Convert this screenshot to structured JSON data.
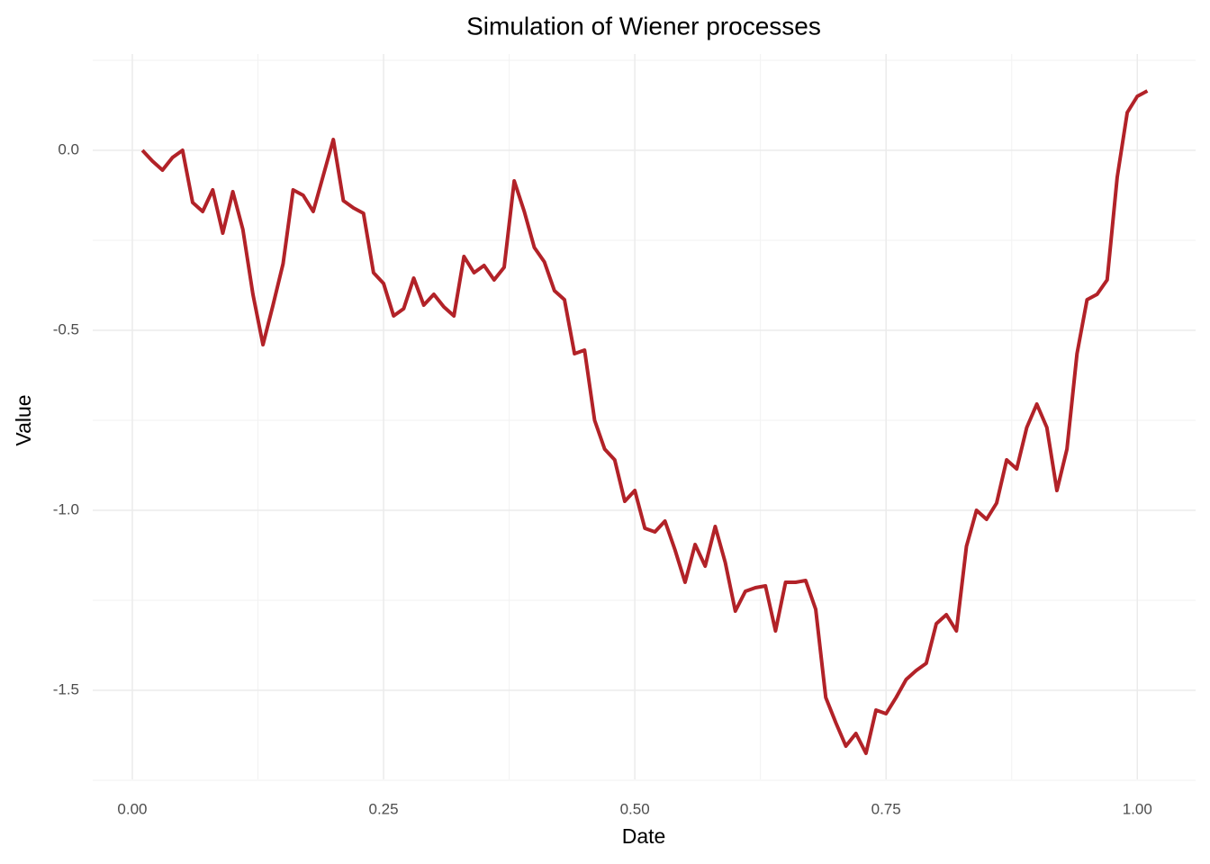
{
  "chart_data": {
    "type": "line",
    "title": "Simulation of Wiener processes",
    "x_label": "Date",
    "y_label": "Value",
    "x": [
      0.01,
      0.02,
      0.03,
      0.04,
      0.05,
      0.06,
      0.07,
      0.08,
      0.09,
      0.1,
      0.11,
      0.12,
      0.13,
      0.14,
      0.15,
      0.16,
      0.17,
      0.18,
      0.19,
      0.2,
      0.21,
      0.22,
      0.23,
      0.24,
      0.25,
      0.26,
      0.27,
      0.28,
      0.29,
      0.3,
      0.31,
      0.32,
      0.33,
      0.34,
      0.35,
      0.36,
      0.37,
      0.38,
      0.39,
      0.4,
      0.41,
      0.42,
      0.43,
      0.44,
      0.45,
      0.46,
      0.47,
      0.48,
      0.49,
      0.5,
      0.51,
      0.52,
      0.53,
      0.54,
      0.55,
      0.56,
      0.57,
      0.58,
      0.59,
      0.6,
      0.61,
      0.62,
      0.63,
      0.64,
      0.65,
      0.66,
      0.67,
      0.68,
      0.69,
      0.7,
      0.71,
      0.72,
      0.73,
      0.74,
      0.75,
      0.76,
      0.77,
      0.78,
      0.79,
      0.8,
      0.81,
      0.82,
      0.83,
      0.84,
      0.85,
      0.86,
      0.87,
      0.88,
      0.89,
      0.9,
      0.91,
      0.92,
      0.93,
      0.94,
      0.95,
      0.96,
      0.97,
      0.98,
      0.99,
      1.0,
      1.01
    ],
    "series": [
      {
        "color": "#b22228",
        "values": [
          0.0,
          -0.03,
          -0.055,
          -0.02,
          0.0,
          -0.145,
          -0.17,
          -0.11,
          -0.23,
          -0.115,
          -0.22,
          -0.4,
          -0.54,
          -0.43,
          -0.315,
          -0.11,
          -0.125,
          -0.17,
          -0.07,
          0.03,
          -0.14,
          -0.16,
          -0.175,
          -0.34,
          -0.37,
          -0.46,
          -0.44,
          -0.355,
          -0.43,
          -0.4,
          -0.435,
          -0.46,
          -0.295,
          -0.34,
          -0.32,
          -0.36,
          -0.325,
          -0.085,
          -0.17,
          -0.27,
          -0.31,
          -0.39,
          -0.415,
          -0.565,
          -0.555,
          -0.75,
          -0.83,
          -0.86,
          -0.975,
          -0.945,
          -1.05,
          -1.06,
          -1.03,
          -1.11,
          -1.2,
          -1.095,
          -1.155,
          -1.045,
          -1.145,
          -1.28,
          -1.225,
          -1.215,
          -1.21,
          -1.335,
          -1.2,
          -1.2,
          -1.195,
          -1.275,
          -1.52,
          -1.59,
          -1.655,
          -1.62,
          -1.675,
          -1.555,
          -1.565,
          -1.52,
          -1.47,
          -1.445,
          -1.425,
          -1.315,
          -1.29,
          -1.335,
          -1.1,
          -1.0,
          -1.025,
          -0.98,
          -0.86,
          -0.885,
          -0.77,
          -0.705,
          -0.77,
          -0.945,
          -0.83,
          -0.565,
          -0.415,
          -0.4,
          -0.36,
          -0.075,
          0.105,
          0.15,
          0.165
        ]
      }
    ],
    "xlim": [
      -0.0394,
      1.058
    ],
    "ylim": [
      -1.7475,
      0.2675
    ],
    "xticks": [
      {
        "value": 0,
        "label": "0.00"
      },
      0.25,
      {
        "value": 0.5,
        "label": "0.50"
      },
      0.75,
      {
        "value": 1,
        "label": "1.00"
      }
    ],
    "yticks": [
      {
        "value": -1.5,
        "label": "-1.5"
      },
      {
        "value": -1,
        "label": "-1.0"
      },
      -0.5,
      {
        "value": 0,
        "label": "0.0"
      }
    ],
    "x_minor_ticks": [
      0.125,
      0.375,
      0.625,
      0.875
    ],
    "y_minor_ticks": [
      -1.75,
      -1.25,
      -0.75,
      -0.25,
      0.25
    ],
    "grid": true
  }
}
